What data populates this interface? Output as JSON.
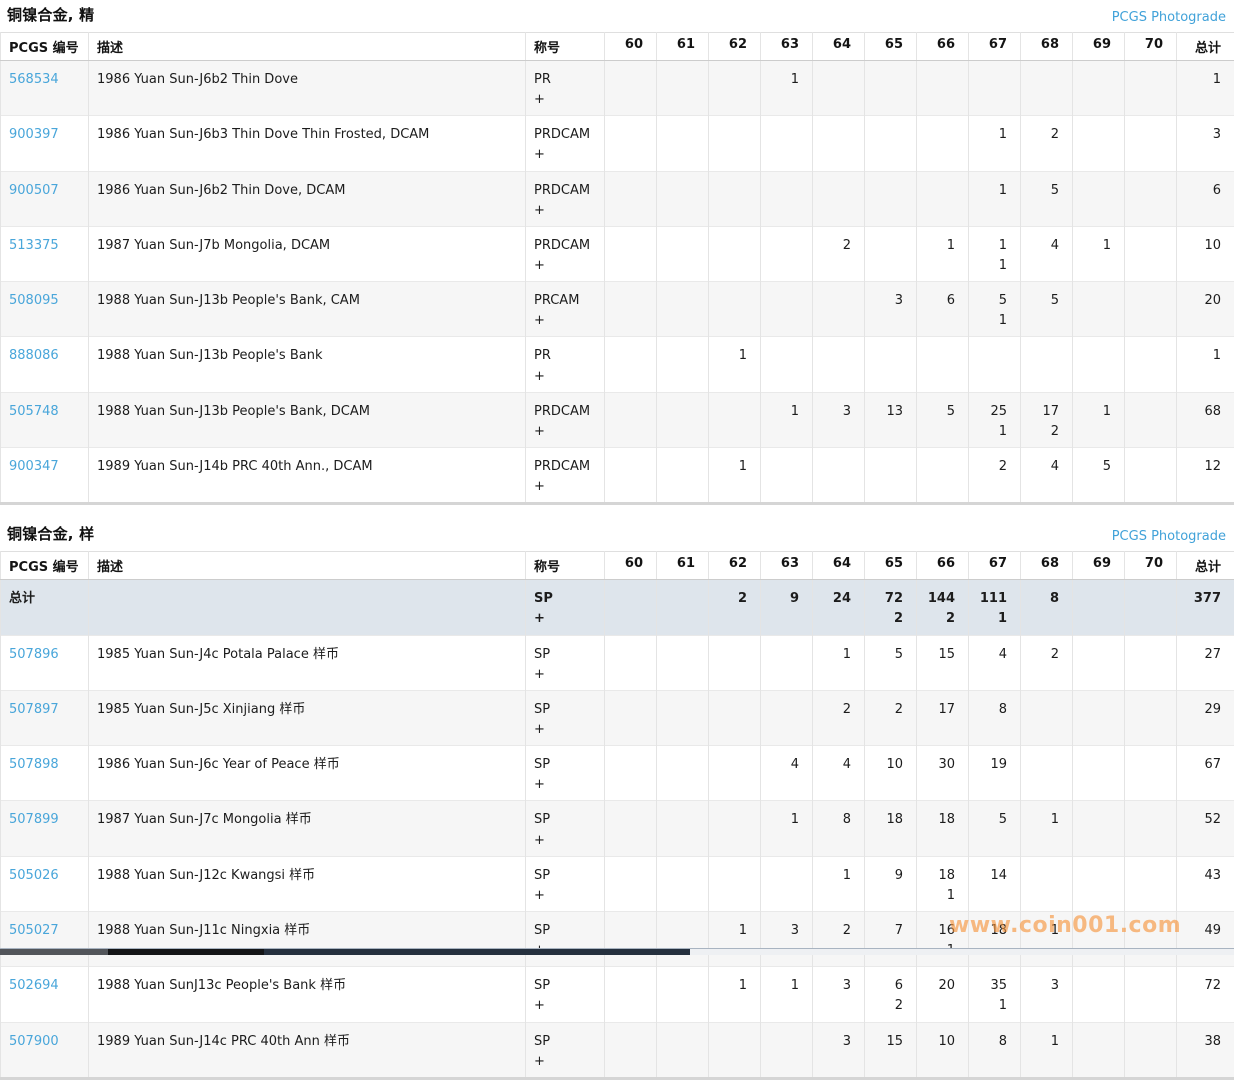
{
  "page": {
    "photograde_label": "PCGS Photograde",
    "watermark": "www.coin001.com"
  },
  "columns": {
    "pcgs": "PCGS 编号",
    "desc": "描述",
    "designation": "称号",
    "grades": [
      "60",
      "61",
      "62",
      "63",
      "64",
      "65",
      "66",
      "67",
      "68",
      "69",
      "70"
    ],
    "total": "总计"
  },
  "tables": [
    {
      "title": "铜镍合金, 精",
      "total_row": null,
      "rows": [
        {
          "pcgs": "568534",
          "desc": "1986 Yuan Sun-J6b2 Thin Dove",
          "designation": [
            "PR",
            "+"
          ],
          "grades": {
            "63": [
              "1"
            ]
          },
          "total": "1"
        },
        {
          "pcgs": "900397",
          "desc": "1986 Yuan Sun-J6b3 Thin Dove Thin Frosted, DCAM",
          "designation": [
            "PRDCAM",
            "+"
          ],
          "grades": {
            "67": [
              "1"
            ],
            "68": [
              "2"
            ]
          },
          "total": "3"
        },
        {
          "pcgs": "900507",
          "desc": "1986 Yuan Sun-J6b2 Thin Dove, DCAM",
          "designation": [
            "PRDCAM",
            "+"
          ],
          "grades": {
            "67": [
              "1"
            ],
            "68": [
              "5"
            ]
          },
          "total": "6"
        },
        {
          "pcgs": "513375",
          "desc": "1987 Yuan Sun-J7b Mongolia, DCAM",
          "designation": [
            "PRDCAM",
            "+"
          ],
          "grades": {
            "64": [
              "2"
            ],
            "66": [
              "1"
            ],
            "67": [
              "1",
              "1"
            ],
            "68": [
              "4"
            ],
            "69": [
              "1"
            ]
          },
          "total": "10"
        },
        {
          "pcgs": "508095",
          "desc": "1988 Yuan Sun-J13b People's Bank, CAM",
          "designation": [
            "PRCAM",
            "+"
          ],
          "grades": {
            "65": [
              "3"
            ],
            "66": [
              "6"
            ],
            "67": [
              "5",
              "1"
            ],
            "68": [
              "5"
            ]
          },
          "total": "20"
        },
        {
          "pcgs": "888086",
          "desc": "1988 Yuan Sun-J13b People's Bank",
          "designation": [
            "PR",
            "+"
          ],
          "grades": {
            "62": [
              "1"
            ]
          },
          "total": "1"
        },
        {
          "pcgs": "505748",
          "desc": "1988 Yuan Sun-J13b People's Bank, DCAM",
          "designation": [
            "PRDCAM",
            "+"
          ],
          "grades": {
            "63": [
              "1"
            ],
            "64": [
              "3"
            ],
            "65": [
              "13"
            ],
            "66": [
              "5"
            ],
            "67": [
              "25",
              "1"
            ],
            "68": [
              "17",
              "2"
            ],
            "69": [
              "1"
            ]
          },
          "total": "68"
        },
        {
          "pcgs": "900347",
          "desc": "1989 Yuan Sun-J14b PRC 40th Ann., DCAM",
          "designation": [
            "PRDCAM",
            "+"
          ],
          "grades": {
            "62": [
              "1"
            ],
            "67": [
              "2"
            ],
            "68": [
              "4"
            ],
            "69": [
              "5"
            ]
          },
          "total": "12"
        }
      ]
    },
    {
      "title": "铜镍合金, 样",
      "total_row": {
        "label": "总计",
        "desc": "",
        "designation": [
          "SP",
          "+"
        ],
        "grades": {
          "62": [
            "2"
          ],
          "63": [
            "9"
          ],
          "64": [
            "24"
          ],
          "65": [
            "72",
            "2"
          ],
          "66": [
            "144",
            "2"
          ],
          "67": [
            "111",
            "1"
          ],
          "68": [
            "8"
          ]
        },
        "total": "377"
      },
      "rows": [
        {
          "pcgs": "507896",
          "desc": "1985 Yuan Sun-J4c Potala Palace 样币",
          "designation": [
            "SP",
            "+"
          ],
          "grades": {
            "64": [
              "1"
            ],
            "65": [
              "5"
            ],
            "66": [
              "15"
            ],
            "67": [
              "4"
            ],
            "68": [
              "2"
            ]
          },
          "total": "27"
        },
        {
          "pcgs": "507897",
          "desc": "1985 Yuan Sun-J5c Xinjiang 样币",
          "designation": [
            "SP",
            "+"
          ],
          "grades": {
            "64": [
              "2"
            ],
            "65": [
              "2"
            ],
            "66": [
              "17"
            ],
            "67": [
              "8"
            ]
          },
          "total": "29"
        },
        {
          "pcgs": "507898",
          "desc": "1986 Yuan Sun-J6c Year of Peace 样币",
          "designation": [
            "SP",
            "+"
          ],
          "grades": {
            "63": [
              "4"
            ],
            "64": [
              "4"
            ],
            "65": [
              "10"
            ],
            "66": [
              "30"
            ],
            "67": [
              "19"
            ]
          },
          "total": "67"
        },
        {
          "pcgs": "507899",
          "desc": "1987 Yuan Sun-J7c Mongolia 样币",
          "designation": [
            "SP",
            "+"
          ],
          "grades": {
            "63": [
              "1"
            ],
            "64": [
              "8"
            ],
            "65": [
              "18"
            ],
            "66": [
              "18"
            ],
            "67": [
              "5"
            ],
            "68": [
              "1"
            ]
          },
          "total": "52"
        },
        {
          "pcgs": "505026",
          "desc": "1988 Yuan Sun-J12c Kwangsi 样币",
          "designation": [
            "SP",
            "+"
          ],
          "grades": {
            "64": [
              "1"
            ],
            "65": [
              "9"
            ],
            "66": [
              "18",
              "1"
            ],
            "67": [
              "14"
            ]
          },
          "total": "43"
        },
        {
          "pcgs": "505027",
          "desc": "1988 Yuan Sun-J11c Ningxia 样币",
          "designation": [
            "SP",
            "+"
          ],
          "grades": {
            "62": [
              "1"
            ],
            "63": [
              "3"
            ],
            "64": [
              "2"
            ],
            "65": [
              "7"
            ],
            "66": [
              "16",
              "1"
            ],
            "67": [
              "18"
            ],
            "68": [
              "1"
            ]
          },
          "total": "49"
        },
        {
          "pcgs": "502694",
          "desc": "1988 Yuan SunJ13c People's Bank 样币",
          "designation": [
            "SP",
            "+"
          ],
          "grades": {
            "62": [
              "1"
            ],
            "63": [
              "1"
            ],
            "64": [
              "3"
            ],
            "65": [
              "6",
              "2"
            ],
            "66": [
              "20"
            ],
            "67": [
              "35",
              "1"
            ],
            "68": [
              "3"
            ]
          },
          "total": "72"
        },
        {
          "pcgs": "507900",
          "desc": "1989 Yuan Sun-J14c PRC 40th Ann 样币",
          "designation": [
            "SP",
            "+"
          ],
          "grades": {
            "64": [
              "3"
            ],
            "65": [
              "15"
            ],
            "66": [
              "10"
            ],
            "67": [
              "8"
            ],
            "68": [
              "1"
            ]
          },
          "total": "38"
        }
      ]
    }
  ]
}
